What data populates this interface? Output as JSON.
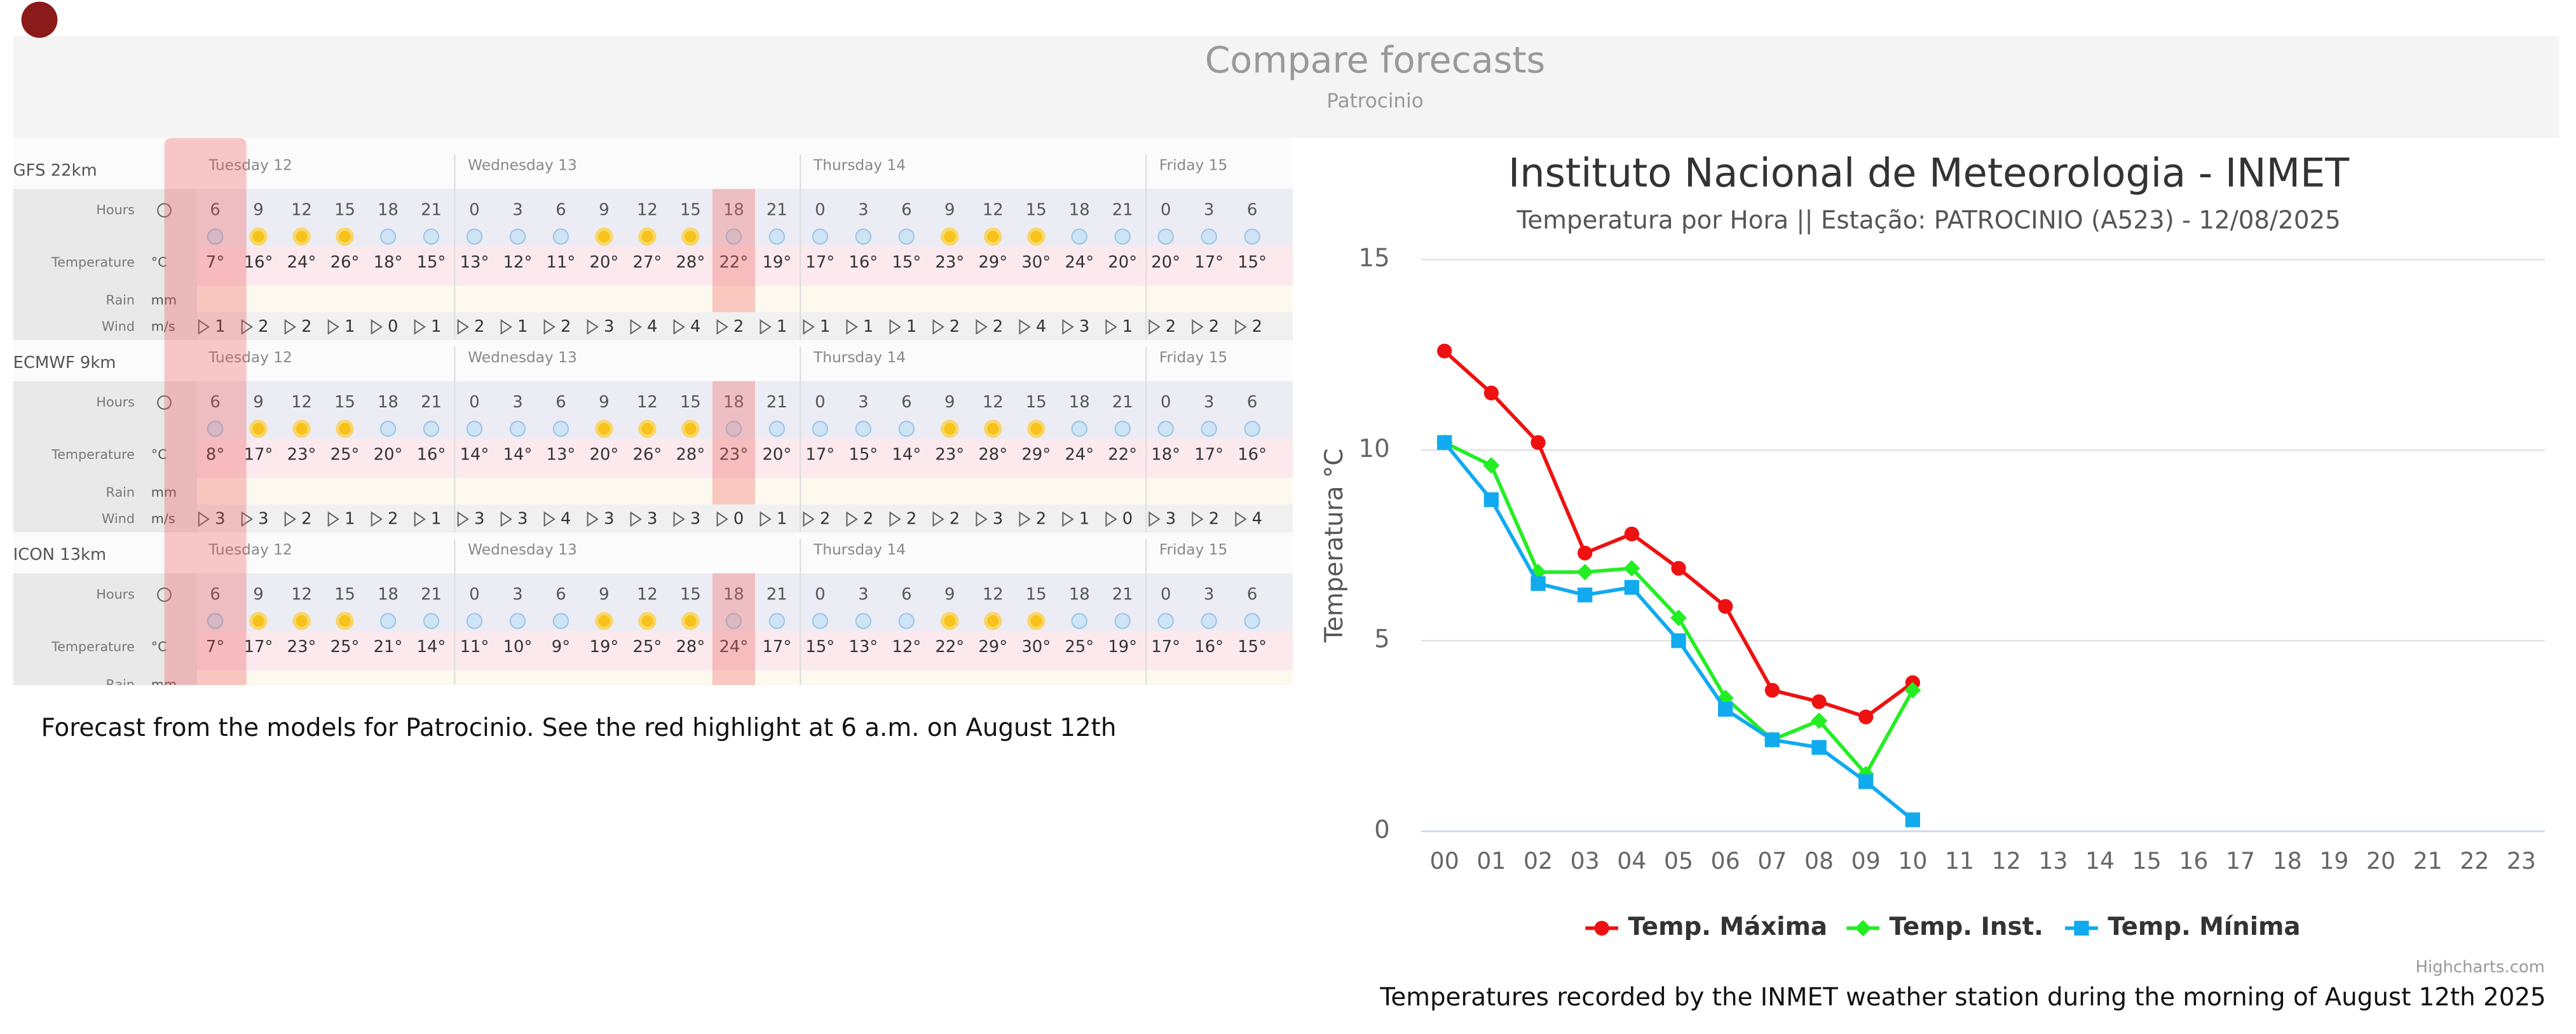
{
  "forecast": {
    "title": "Compare forecasts",
    "subtitle": "Patrocinio",
    "caption": "Forecast from the models for Patrocinio. See the red highlight at 6 a.m. on August 12th",
    "row_labels": {
      "hours": "Hours",
      "temperature": "Temperature",
      "rain": "Rain",
      "wind": "Wind"
    },
    "units": {
      "temperature": "°C",
      "rain": "mm",
      "wind": "m/s"
    },
    "days": [
      "Tuesday 12",
      "Wednesday 13",
      "Thursday 14",
      "Friday 15"
    ],
    "hours": [
      6,
      9,
      12,
      15,
      18,
      21,
      0,
      3,
      6,
      9,
      12,
      15,
      18,
      21,
      0,
      3,
      6,
      9,
      12,
      15,
      18,
      21,
      0,
      3,
      6
    ],
    "models": [
      {
        "name": "GFS 22km",
        "temperatures": [
          "7°",
          "16°",
          "24°",
          "26°",
          "18°",
          "15°",
          "13°",
          "12°",
          "11°",
          "20°",
          "27°",
          "28°",
          "22°",
          "19°",
          "17°",
          "16°",
          "15°",
          "23°",
          "29°",
          "30°",
          "24°",
          "20°",
          "20°",
          "17°",
          "15°"
        ],
        "wind": [
          1,
          2,
          2,
          1,
          0,
          1,
          2,
          1,
          2,
          3,
          4,
          4,
          2,
          1,
          1,
          1,
          1,
          2,
          2,
          4,
          3,
          1,
          2,
          2,
          2
        ]
      },
      {
        "name": "ECMWF 9km",
        "temperatures": [
          "8°",
          "17°",
          "23°",
          "25°",
          "20°",
          "16°",
          "14°",
          "14°",
          "13°",
          "20°",
          "26°",
          "28°",
          "23°",
          "20°",
          "17°",
          "15°",
          "14°",
          "23°",
          "28°",
          "29°",
          "24°",
          "22°",
          "18°",
          "17°",
          "16°"
        ],
        "wind": [
          3,
          3,
          2,
          1,
          2,
          1,
          3,
          3,
          4,
          3,
          3,
          3,
          0,
          1,
          2,
          2,
          2,
          2,
          3,
          2,
          1,
          0,
          3,
          2,
          4
        ]
      },
      {
        "name": "ICON 13km",
        "temperatures": [
          "7°",
          "17°",
          "23°",
          "25°",
          "21°",
          "14°",
          "11°",
          "10°",
          "9°",
          "19°",
          "25°",
          "28°",
          "24°",
          "17°",
          "15°",
          "13°",
          "12°",
          "22°",
          "29°",
          "30°",
          "25°",
          "19°",
          "17°",
          "16°",
          "15°"
        ]
      }
    ]
  },
  "chart_data": {
    "type": "line",
    "title": "Instituto Nacional de Meteorologia - INMET",
    "subtitle": "Temperatura por Hora || Estação: PATROCINIO (A523) - 12/08/2025",
    "y_label": "Temperatura °C",
    "categories": [
      "00",
      "01",
      "02",
      "03",
      "04",
      "05",
      "06",
      "07",
      "08",
      "09",
      "10",
      "11",
      "12",
      "13",
      "14",
      "15",
      "16",
      "17",
      "18",
      "19",
      "20",
      "21",
      "22",
      "23"
    ],
    "series": [
      {
        "name": "Temp. Máxima",
        "color": "#ee1111",
        "marker": "circle",
        "values": [
          12.6,
          11.5,
          10.2,
          7.3,
          7.8,
          6.9,
          5.9,
          3.7,
          3.4,
          3.0,
          3.9,
          null,
          null,
          null,
          null,
          null,
          null,
          null,
          null,
          null,
          null,
          null,
          null,
          null
        ]
      },
      {
        "name": "Temp. Inst.",
        "color": "#22ee22",
        "marker": "diamond",
        "values": [
          10.2,
          9.6,
          6.8,
          6.8,
          6.9,
          5.6,
          3.5,
          2.4,
          2.9,
          1.5,
          3.7,
          null,
          null,
          null,
          null,
          null,
          null,
          null,
          null,
          null,
          null,
          null,
          null,
          null
        ]
      },
      {
        "name": "Temp. Mínima",
        "color": "#11aaee",
        "marker": "square",
        "values": [
          10.2,
          8.7,
          6.5,
          6.2,
          6.4,
          5.0,
          3.2,
          2.4,
          2.2,
          1.3,
          0.3,
          null,
          null,
          null,
          null,
          null,
          null,
          null,
          null,
          null,
          null,
          null,
          null,
          null
        ]
      }
    ],
    "ylim": [
      0,
      15
    ],
    "yticks": [
      0,
      5,
      10,
      15
    ],
    "grid": true,
    "legend": "bottom",
    "credit": "Highcharts.com",
    "caption": "Temperatures recorded by the INMET weather station during the morning of August 12th 2025"
  }
}
